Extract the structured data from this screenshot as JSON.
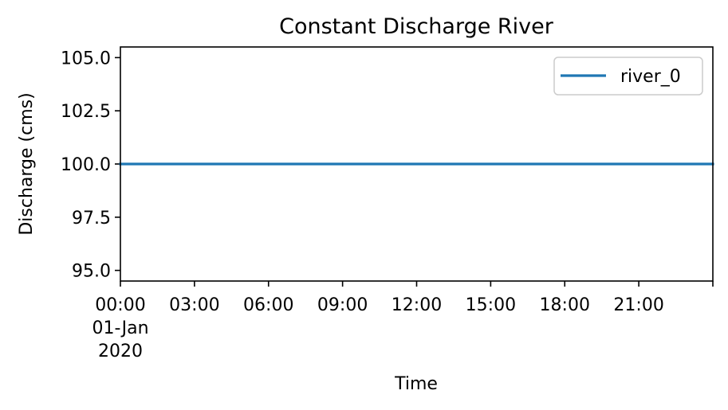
{
  "chart_data": {
    "type": "line",
    "title": "Constant Discharge River",
    "xlabel": "Time",
    "ylabel": "Discharge (cms)",
    "x_range": [
      "2020-01-01 00:00",
      "2020-01-02 00:00"
    ],
    "ylim": [
      94.5,
      105.5
    ],
    "y_ticks": [
      95.0,
      97.5,
      100.0,
      102.5,
      105.0
    ],
    "y_tick_labels": [
      "95.0",
      "97.5",
      "100.0",
      "102.5",
      "105.0"
    ],
    "x_ticks": [
      {
        "time": "2020-01-01 00:00",
        "label": [
          "00:00",
          "01-Jan",
          "2020"
        ]
      },
      {
        "time": "2020-01-01 03:00",
        "label": [
          "03:00"
        ]
      },
      {
        "time": "2020-01-01 06:00",
        "label": [
          "06:00"
        ]
      },
      {
        "time": "2020-01-01 09:00",
        "label": [
          "09:00"
        ]
      },
      {
        "time": "2020-01-01 12:00",
        "label": [
          "12:00"
        ]
      },
      {
        "time": "2020-01-01 15:00",
        "label": [
          "15:00"
        ]
      },
      {
        "time": "2020-01-01 18:00",
        "label": [
          "18:00"
        ]
      },
      {
        "time": "2020-01-01 21:00",
        "label": [
          "21:00"
        ]
      },
      {
        "time": "2020-01-02 00:00",
        "label": []
      }
    ],
    "series": [
      {
        "name": "river_0",
        "color": "#1f77b4",
        "x": [
          "2020-01-01 00:00",
          "2020-01-02 00:00"
        ],
        "y": [
          100.0,
          100.0
        ]
      }
    ],
    "legend": {
      "position": "top-right"
    },
    "grid": false
  }
}
